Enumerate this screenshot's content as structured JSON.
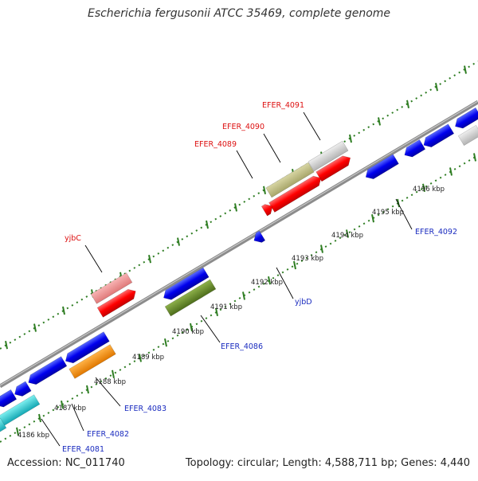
{
  "title": "Escherichia fergusonii ATCC 35469, complete genome",
  "accession": "Accession: NC_011740",
  "summary": "Topology: circular; Length: 4,588,711 bp; Genes: 4,440",
  "colors": {
    "backbone": "#8a8a8a",
    "ticks": "#2e7d22",
    "forward_label": "#dd1111",
    "reverse_label": "#1a2bbf"
  },
  "kbp_labels": [
    {
      "id": "kbp-4186",
      "text": "4186 kbp"
    },
    {
      "id": "kbp-4187",
      "text": "4187 kbp"
    },
    {
      "id": "kbp-4188",
      "text": "4188 kbp"
    },
    {
      "id": "kbp-4189",
      "text": "4189 kbp"
    },
    {
      "id": "kbp-4190",
      "text": "4190 kbp"
    },
    {
      "id": "kbp-4191",
      "text": "4191 kbp"
    },
    {
      "id": "kbp-4192",
      "text": "4192 kbp"
    },
    {
      "id": "kbp-4193",
      "text": "4193 kbp"
    },
    {
      "id": "kbp-4194",
      "text": "4194 kbp"
    },
    {
      "id": "kbp-4195",
      "text": "4195 kbp"
    },
    {
      "id": "kbp-4196",
      "text": "4196 kbp"
    }
  ],
  "gene_labels": [
    {
      "id": "label-efer-4091",
      "text": "EFER_4091",
      "strand": "forward"
    },
    {
      "id": "label-efer-4090",
      "text": "EFER_4090",
      "strand": "forward"
    },
    {
      "id": "label-efer-4089",
      "text": "EFER_4089",
      "strand": "forward"
    },
    {
      "id": "label-yjbc",
      "text": "yjbC",
      "strand": "forward"
    },
    {
      "id": "label-efer-4092",
      "text": "EFER_4092",
      "strand": "reverse"
    },
    {
      "id": "label-yjbd",
      "text": "yjbD",
      "strand": "reverse"
    },
    {
      "id": "label-efer-4086",
      "text": "EFER_4086",
      "strand": "reverse"
    },
    {
      "id": "label-efer-4083",
      "text": "EFER_4083",
      "strand": "reverse"
    },
    {
      "id": "label-efer-4082",
      "text": "EFER_4082",
      "strand": "reverse"
    },
    {
      "id": "label-efer-4081",
      "text": "EFER_4081",
      "strand": "reverse"
    }
  ]
}
